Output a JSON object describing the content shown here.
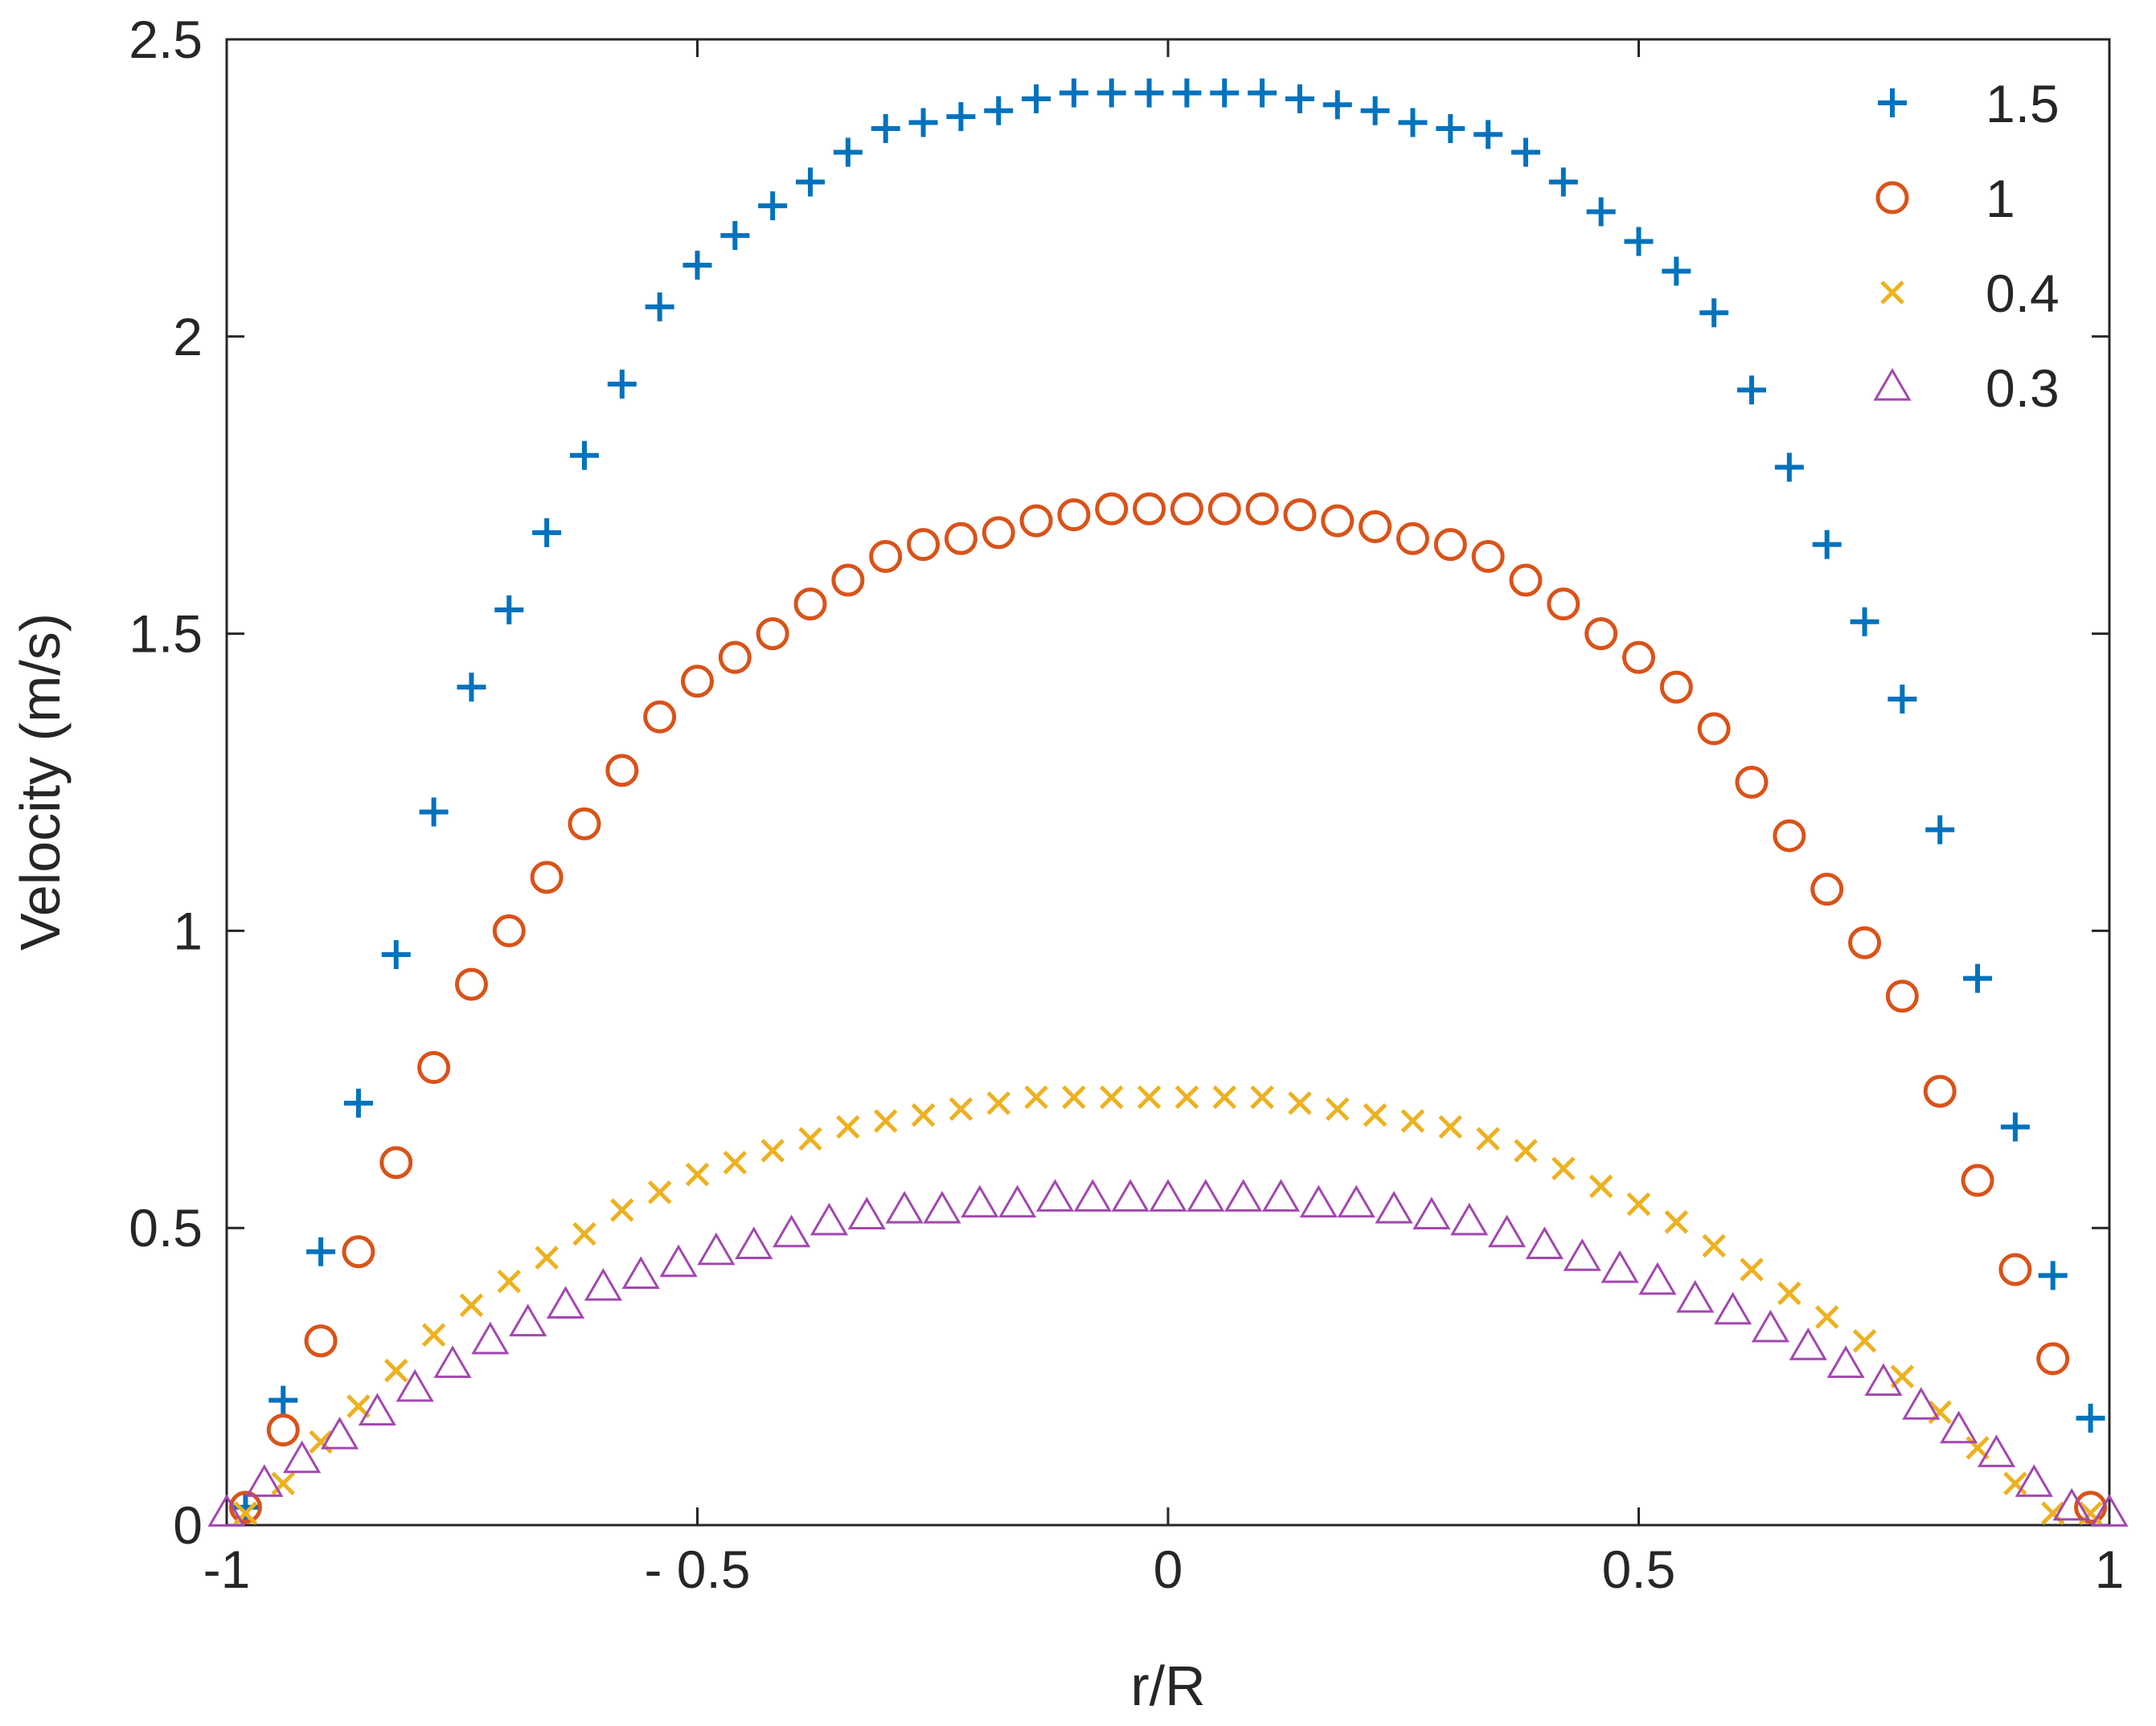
{
  "chart_data": {
    "type": "scatter",
    "title": "",
    "xlabel": "r/R",
    "ylabel": "Velocity (m/s)",
    "xlim": [
      -1,
      1
    ],
    "ylim": [
      0,
      2.5
    ],
    "xticks": [
      -1,
      -0.5,
      0,
      0.5,
      1
    ],
    "xtick_labels": [
      "-1",
      "- 0.5",
      "0",
      "0.5",
      "1"
    ],
    "yticks": [
      0,
      0.5,
      1,
      1.5,
      2,
      2.5
    ],
    "ytick_labels": [
      "0",
      "0.5",
      "1",
      "1.5",
      "2",
      "2.5"
    ],
    "grid": false,
    "legend_position": "top-right",
    "series": [
      {
        "name": "1.5",
        "marker": "plus",
        "color": "#0072BD",
        "x": [
          -0.98,
          -0.94,
          -0.9,
          -0.86,
          -0.82,
          -0.78,
          -0.74,
          -0.7,
          -0.66,
          -0.62,
          -0.58,
          -0.54,
          -0.5,
          -0.46,
          -0.42,
          -0.38,
          -0.34,
          -0.3,
          -0.26,
          -0.22,
          -0.18,
          -0.14,
          -0.1,
          -0.06,
          -0.02,
          0.02,
          0.06,
          0.1,
          0.14,
          0.18,
          0.22,
          0.26,
          0.3,
          0.34,
          0.38,
          0.42,
          0.46,
          0.5,
          0.54,
          0.58,
          0.62,
          0.66,
          0.7,
          0.74,
          0.78,
          0.82,
          0.86,
          0.9,
          0.94,
          0.98
        ],
        "y": [
          0.03,
          0.21,
          0.46,
          0.71,
          0.96,
          1.2,
          1.41,
          1.54,
          1.67,
          1.8,
          1.92,
          2.05,
          2.12,
          2.17,
          2.22,
          2.26,
          2.31,
          2.35,
          2.36,
          2.37,
          2.38,
          2.4,
          2.41,
          2.41,
          2.41,
          2.41,
          2.41,
          2.41,
          2.4,
          2.39,
          2.38,
          2.36,
          2.35,
          2.34,
          2.31,
          2.26,
          2.21,
          2.16,
          2.11,
          2.04,
          1.91,
          1.78,
          1.65,
          1.52,
          1.39,
          1.17,
          0.92,
          0.67,
          0.42,
          0.18
        ]
      },
      {
        "name": "1",
        "marker": "circle",
        "color": "#D95319",
        "x": [
          -0.98,
          -0.94,
          -0.9,
          -0.86,
          -0.82,
          -0.78,
          -0.74,
          -0.7,
          -0.66,
          -0.62,
          -0.58,
          -0.54,
          -0.5,
          -0.46,
          -0.42,
          -0.38,
          -0.34,
          -0.3,
          -0.26,
          -0.22,
          -0.18,
          -0.14,
          -0.1,
          -0.06,
          -0.02,
          0.02,
          0.06,
          0.1,
          0.14,
          0.18,
          0.22,
          0.26,
          0.3,
          0.34,
          0.38,
          0.42,
          0.46,
          0.5,
          0.54,
          0.58,
          0.62,
          0.66,
          0.7,
          0.74,
          0.78,
          0.82,
          0.86,
          0.9,
          0.94,
          0.98
        ],
        "y": [
          0.03,
          0.16,
          0.31,
          0.46,
          0.61,
          0.77,
          0.91,
          1.0,
          1.09,
          1.18,
          1.27,
          1.36,
          1.42,
          1.46,
          1.5,
          1.55,
          1.59,
          1.63,
          1.65,
          1.66,
          1.67,
          1.69,
          1.7,
          1.71,
          1.71,
          1.71,
          1.71,
          1.71,
          1.7,
          1.69,
          1.68,
          1.66,
          1.65,
          1.63,
          1.59,
          1.55,
          1.5,
          1.46,
          1.41,
          1.34,
          1.25,
          1.16,
          1.07,
          0.98,
          0.89,
          0.73,
          0.58,
          0.43,
          0.28,
          0.03
        ]
      },
      {
        "name": "0.4",
        "marker": "x",
        "color": "#EDB120",
        "x": [
          -0.98,
          -0.94,
          -0.9,
          -0.86,
          -0.82,
          -0.78,
          -0.74,
          -0.7,
          -0.66,
          -0.62,
          -0.58,
          -0.54,
          -0.5,
          -0.46,
          -0.42,
          -0.38,
          -0.34,
          -0.3,
          -0.26,
          -0.22,
          -0.18,
          -0.14,
          -0.1,
          -0.06,
          -0.02,
          0.02,
          0.06,
          0.1,
          0.14,
          0.18,
          0.22,
          0.26,
          0.3,
          0.34,
          0.38,
          0.42,
          0.46,
          0.5,
          0.54,
          0.58,
          0.62,
          0.66,
          0.7,
          0.74,
          0.78,
          0.82,
          0.86,
          0.9,
          0.94,
          0.98
        ],
        "y": [
          0.02,
          0.07,
          0.14,
          0.2,
          0.26,
          0.32,
          0.37,
          0.41,
          0.45,
          0.49,
          0.53,
          0.56,
          0.59,
          0.61,
          0.63,
          0.65,
          0.67,
          0.68,
          0.69,
          0.7,
          0.71,
          0.72,
          0.72,
          0.72,
          0.72,
          0.72,
          0.72,
          0.72,
          0.71,
          0.7,
          0.69,
          0.68,
          0.67,
          0.65,
          0.63,
          0.6,
          0.57,
          0.54,
          0.51,
          0.47,
          0.43,
          0.39,
          0.35,
          0.31,
          0.25,
          0.19,
          0.13,
          0.07,
          0.02,
          0.02
        ]
      },
      {
        "name": "0.3",
        "marker": "triangle",
        "color": "#A347B0",
        "x": [
          -1.0,
          -0.96,
          -0.92,
          -0.88,
          -0.84,
          -0.8,
          -0.76,
          -0.72,
          -0.68,
          -0.64,
          -0.6,
          -0.56,
          -0.52,
          -0.48,
          -0.44,
          -0.4,
          -0.36,
          -0.32,
          -0.28,
          -0.24,
          -0.2,
          -0.16,
          -0.12,
          -0.08,
          -0.04,
          0.0,
          0.04,
          0.08,
          0.12,
          0.16,
          0.2,
          0.24,
          0.28,
          0.32,
          0.36,
          0.4,
          0.44,
          0.48,
          0.52,
          0.56,
          0.6,
          0.64,
          0.68,
          0.72,
          0.76,
          0.8,
          0.84,
          0.88,
          0.92,
          0.96,
          1.0
        ],
        "y": [
          0.02,
          0.07,
          0.11,
          0.15,
          0.19,
          0.23,
          0.27,
          0.31,
          0.34,
          0.37,
          0.4,
          0.42,
          0.44,
          0.46,
          0.47,
          0.49,
          0.51,
          0.52,
          0.53,
          0.53,
          0.54,
          0.54,
          0.55,
          0.55,
          0.55,
          0.55,
          0.55,
          0.55,
          0.55,
          0.54,
          0.54,
          0.53,
          0.52,
          0.51,
          0.49,
          0.47,
          0.45,
          0.43,
          0.41,
          0.38,
          0.36,
          0.33,
          0.3,
          0.27,
          0.24,
          0.2,
          0.16,
          0.12,
          0.07,
          0.03,
          0.02
        ]
      }
    ]
  }
}
